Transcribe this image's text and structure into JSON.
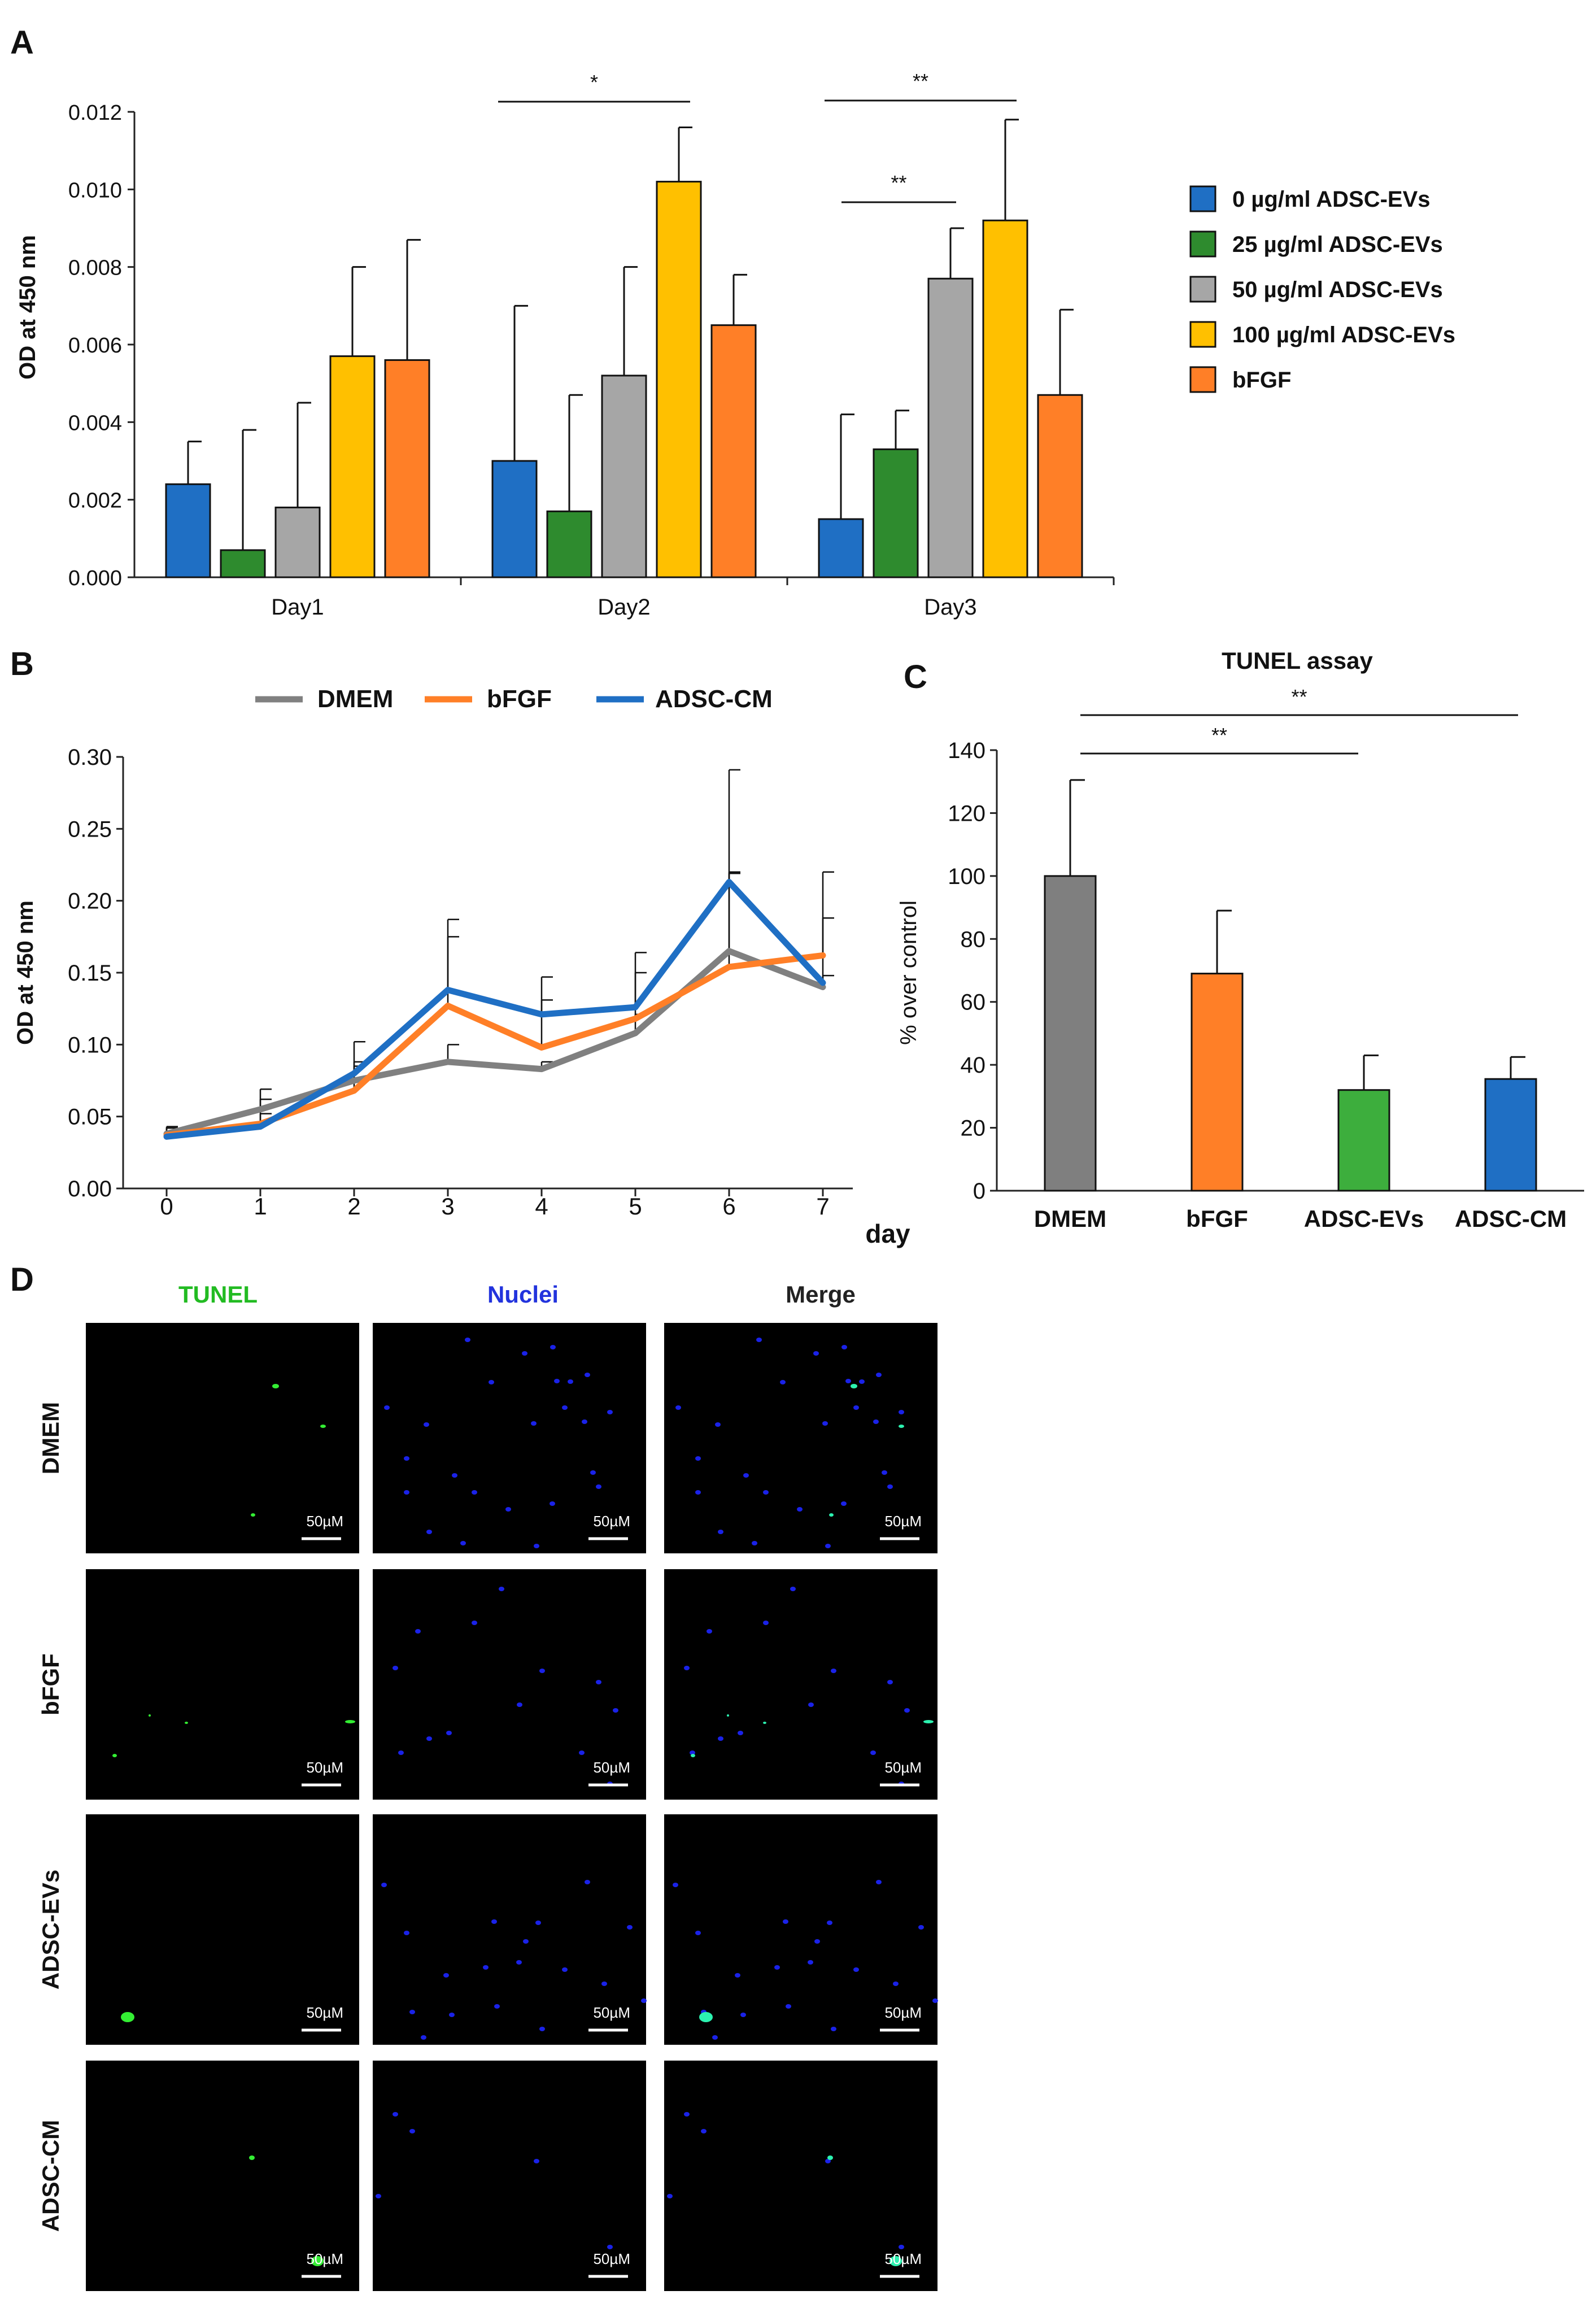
{
  "panels": {
    "a": {
      "label": "A"
    },
    "b": {
      "label": "B"
    },
    "c": {
      "label": "C"
    },
    "d": {
      "label": "D"
    }
  },
  "chart_data": [
    {
      "id": "A",
      "type": "bar",
      "title": "",
      "xlabel": "",
      "ylabel": "OD at 450 nm",
      "ylim": [
        0,
        0.012
      ],
      "yticks": [
        "0.000",
        "0.002",
        "0.004",
        "0.006",
        "0.008",
        "0.010",
        "0.012"
      ],
      "categories": [
        "Day1",
        "Day2",
        "Day3"
      ],
      "series": [
        {
          "name": "0 µg/ml ADSC-EVs",
          "color": "#1f6fc4",
          "values": [
            0.0024,
            0.003,
            0.0015
          ],
          "errors": [
            0.0011,
            0.004,
            0.0027
          ]
        },
        {
          "name": "25 µg/ml ADSC-EVs",
          "color": "#2e8b2e",
          "values": [
            0.0007,
            0.0017,
            0.0033
          ],
          "errors": [
            0.0031,
            0.003,
            0.001
          ]
        },
        {
          "name": "50 µg/ml ADSC-EVs",
          "color": "#a6a6a6",
          "values": [
            0.0018,
            0.0052,
            0.0077
          ],
          "errors": [
            0.0027,
            0.0028,
            0.0013
          ]
        },
        {
          "name": "100 µg/ml ADSC-EVs",
          "color": "#ffc000",
          "values": [
            0.0057,
            0.0102,
            0.0092
          ],
          "errors": [
            0.0023,
            0.0014,
            0.0026
          ]
        },
        {
          "name": "bFGF",
          "color": "#ff7f27",
          "values": [
            0.0056,
            0.0065,
            0.0047
          ],
          "errors": [
            0.0031,
            0.0013,
            0.0022
          ]
        }
      ],
      "legend": "right",
      "annotations": [
        {
          "text": "*",
          "between": "Day2 0 µg/ml – Day2 100 µg/ml"
        },
        {
          "text": "**",
          "between": "Day3 0 µg/ml – Day3 100 µg/ml"
        },
        {
          "text": "**",
          "between": "Day3 0 µg/ml – Day3 50 µg/ml"
        }
      ]
    },
    {
      "id": "B",
      "type": "line",
      "title": "",
      "xlabel": "day",
      "ylabel": "OD at 450 nm",
      "ylim": [
        0,
        0.3
      ],
      "yticks": [
        "0.00",
        "0.05",
        "0.10",
        "0.15",
        "0.20",
        "0.25",
        "0.30"
      ],
      "x": [
        0,
        1,
        2,
        3,
        4,
        5,
        6,
        7
      ],
      "series": [
        {
          "name": "DMEM",
          "color": "#808080",
          "values": [
            0.038,
            0.055,
            0.075,
            0.088,
            0.083,
            0.108,
            0.165,
            0.14
          ],
          "errors": [
            0.005,
            0.007,
            0.01,
            0.012,
            0.005,
            0.013,
            0.055,
            0.008
          ]
        },
        {
          "name": "bFGF",
          "color": "#ff7f27",
          "values": [
            0.037,
            0.045,
            0.068,
            0.127,
            0.098,
            0.118,
            0.154,
            0.162
          ],
          "errors": [
            0.005,
            0.007,
            0.02,
            0.048,
            0.033,
            0.032,
            0.065,
            0.026
          ]
        },
        {
          "name": "ADSC-CM",
          "color": "#1f6fc4",
          "values": [
            0.036,
            0.043,
            0.08,
            0.138,
            0.121,
            0.126,
            0.213,
            0.143
          ],
          "errors": [
            0.006,
            0.026,
            0.022,
            0.049,
            0.026,
            0.038,
            0.078,
            0.077
          ]
        }
      ],
      "legend": "top"
    },
    {
      "id": "C",
      "type": "bar",
      "title": "TUNEL assay",
      "xlabel": "",
      "ylabel": "% over control",
      "ylim": [
        0,
        140
      ],
      "yticks": [
        "0",
        "20",
        "40",
        "60",
        "80",
        "100",
        "120",
        "140"
      ],
      "categories": [
        "DMEM",
        "bFGF",
        "ADSC-EVs",
        "ADSC-CM"
      ],
      "values": [
        100,
        69,
        32,
        35.5
      ],
      "errors": [
        30.5,
        20,
        11,
        7
      ],
      "colors": [
        "#7f7f7f",
        "#ff7f27",
        "#3dae3d",
        "#1f6fc4"
      ],
      "annotations": [
        {
          "text": "**",
          "between": "DMEM – ADSC-CM"
        },
        {
          "text": "**",
          "between": "DMEM – ADSC-EVs"
        }
      ]
    }
  ],
  "micrographs": {
    "columns": [
      {
        "title": "TUNEL",
        "color": "#22bb22"
      },
      {
        "title": "Nuclei",
        "color": "#2233dd"
      },
      {
        "title": "Merge",
        "color": "#222222"
      }
    ],
    "rows": [
      "DMEM",
      "bFGF",
      "ADSC-EVs",
      "ADSC-CM"
    ],
    "scale_bar": "50µM"
  }
}
